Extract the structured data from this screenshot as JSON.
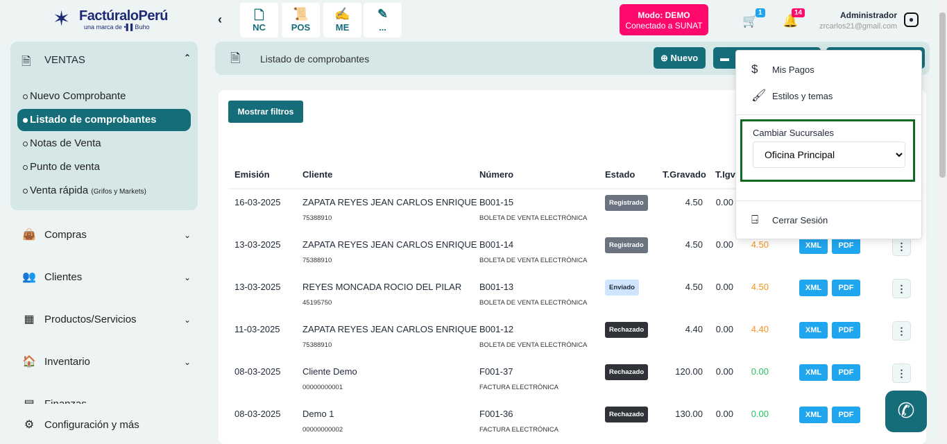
{
  "brand": {
    "name": "FactúraloPerú",
    "tagline": "una marca de •▌▌Buho"
  },
  "quick": [
    {
      "label": "NC",
      "icon": "receipt-icon"
    },
    {
      "label": "POS",
      "icon": "scroll-icon"
    },
    {
      "label": "ME",
      "icon": "signature-icon"
    },
    {
      "label": "...",
      "icon": "edit-icon"
    }
  ],
  "mode": {
    "line1": "Modo: DEMO",
    "line2": "Conectado a SUNAT",
    "color": "#ff0a6c"
  },
  "cart_count": "1",
  "notif_count": "14",
  "user": {
    "name": "Administrador",
    "email": "zrcarlos21@gmail.com"
  },
  "sidebar": {
    "section": "VENTAS",
    "sub": [
      "Nuevo Comprobante",
      "Listado de comprobantes",
      "Notas de Venta",
      "Punto de venta",
      "Venta rápida"
    ],
    "sub_note": "(Grifos y Markets)",
    "items": [
      "Compras",
      "Clientes",
      "Productos/Servicios",
      "Inventario",
      "Finanzas",
      "Configuración y más"
    ]
  },
  "header": {
    "title": "Listado de comprobantes",
    "nuevo": "Nuevo"
  },
  "filters_btn": "Mostrar filtros",
  "table": {
    "headers": [
      "Emisión",
      "Cliente",
      "Número",
      "Estado",
      "T.Gravado",
      "T.Igv"
    ],
    "rows": [
      {
        "date": "16-03-2025",
        "client": "ZAPATA REYES JEAN CARLOS ENRIQUE",
        "doc": "75388910",
        "num": "B001-15",
        "type": "BOLETA DE VENTA ELECTRÓNICA",
        "status": "Registrado",
        "grav": "4.50",
        "igv": "0.00",
        "total": ""
      },
      {
        "date": "13-03-2025",
        "client": "ZAPATA REYES JEAN CARLOS ENRIQUE",
        "doc": "75388910",
        "num": "B001-14",
        "type": "BOLETA DE VENTA ELECTRÓNICA",
        "status": "Registrado",
        "grav": "4.50",
        "igv": "0.00",
        "total": "4.50"
      },
      {
        "date": "13-03-2025",
        "client": "REYES MONCADA ROCIO DEL PILAR",
        "doc": "45195750",
        "num": "B001-13",
        "type": "BOLETA DE VENTA ELECTRÓNICA",
        "status": "Enviado",
        "grav": "4.50",
        "igv": "0.00",
        "total": "4.50"
      },
      {
        "date": "11-03-2025",
        "client": "ZAPATA REYES JEAN CARLOS ENRIQUE",
        "doc": "75388910",
        "num": "B001-12",
        "type": "BOLETA DE VENTA ELECTRÓNICA",
        "status": "Rechazado",
        "grav": "4.40",
        "igv": "0.00",
        "total": "4.40"
      },
      {
        "date": "08-03-2025",
        "client": "Cliente Demo",
        "doc": "00000000001",
        "num": "F001-37",
        "type": "FACTURA ELECTRÓNICA",
        "status": "Rechazado",
        "grav": "120.00",
        "igv": "0.00",
        "total": "0.00"
      },
      {
        "date": "08-03-2025",
        "client": "Demo 1",
        "doc": "00000000002",
        "num": "F001-36",
        "type": "FACTURA ELECTRÓNICA",
        "status": "Rechazado",
        "grav": "130.00",
        "igv": "0.00",
        "total": "0.00"
      }
    ],
    "xml": "XML",
    "pdf": "PDF"
  },
  "menu": {
    "pagos": "Mis Pagos",
    "estilos": "Estilos y temas",
    "branch_label": "Cambiar Sucursales",
    "branch_value": "Oficina Principal",
    "logout": "Cerrar Sesión"
  },
  "colors": {
    "primary": "#156d7a",
    "orange": "#f7931e",
    "green": "#22c55e"
  }
}
